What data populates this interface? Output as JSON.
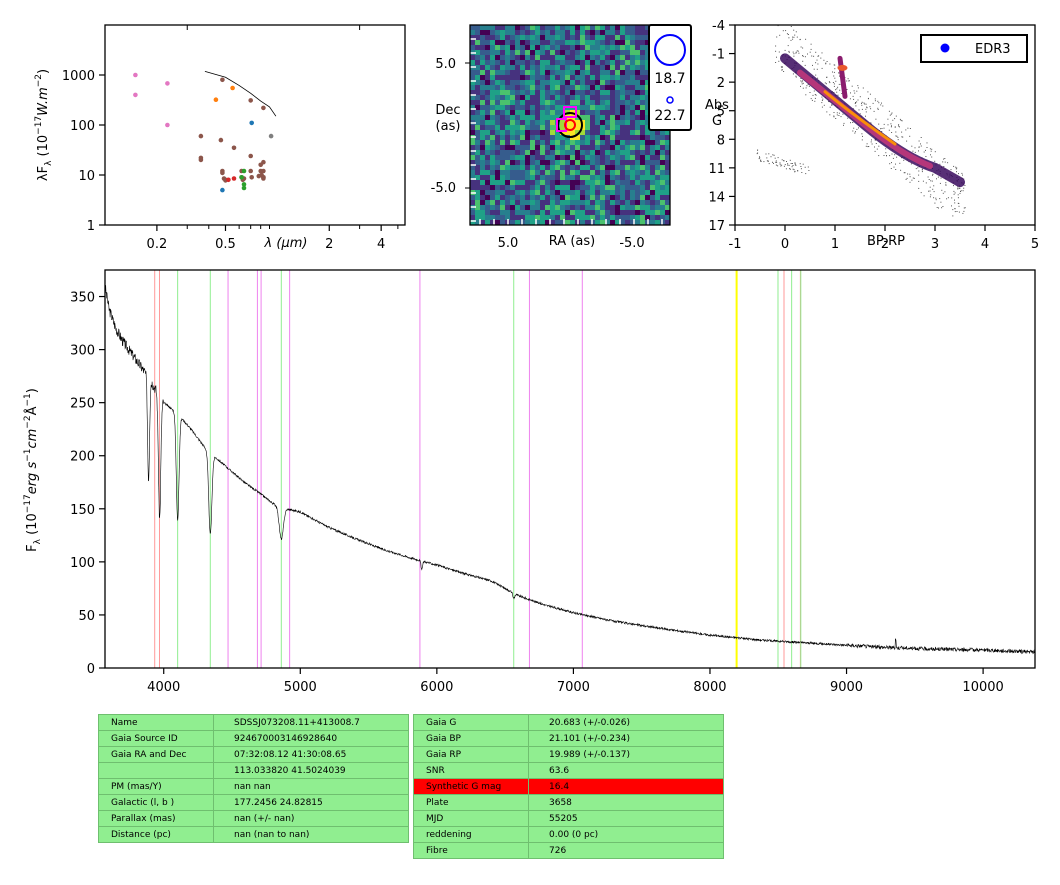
{
  "chart_data": [
    {
      "type": "scatter",
      "panel": "sed",
      "ylabel_main": "λF",
      "ylabel_sub": "λ",
      "ylabel_unit": " (10",
      "ylabel_exp": "−17",
      "ylabel_tail": "W.m",
      "ylabel_exp2": "−2",
      "ylabel_close": ")",
      "xlabel": "λ (μm)",
      "xscale": "log",
      "yscale": "log",
      "xlim": [
        0.1,
        5.5
      ],
      "ylim": [
        1,
        10000
      ],
      "x_ticks": [
        0.2,
        0.5,
        2,
        4
      ],
      "x_tick_labels": [
        "0.2",
        "0.5",
        "2",
        "4"
      ],
      "y_ticks": [
        1,
        10,
        100,
        1000
      ],
      "y_tick_labels": [
        "1",
        "10",
        "100",
        "1000"
      ],
      "series": [
        {
          "color": "#e377c2",
          "x": [
            0.15,
            0.15,
            0.23,
            0.23
          ],
          "y": [
            1000,
            400,
            680,
            100
          ]
        },
        {
          "color": "#8c564b",
          "x": [
            0.36,
            0.36,
            0.36,
            0.47,
            0.48,
            0.48,
            0.49,
            0.5,
            0.5,
            0.56,
            0.62,
            0.62,
            0.63,
            0.64,
            0.7,
            0.7,
            0.71,
            0.78,
            0.8,
            0.8,
            0.81,
            0.83,
            0.83,
            0.83,
            0.83,
            0.83,
            0.48,
            0.7,
            0.83
          ],
          "y": [
            60,
            22,
            20,
            50,
            12,
            11,
            8.5,
            8,
            7.8,
            35,
            12,
            9,
            8,
            8.5,
            24,
            12,
            9,
            9.5,
            16,
            12,
            10,
            9,
            8.5,
            18,
            12,
            9,
            800,
            310,
            220
          ]
        },
        {
          "color": "#ff7f0e",
          "x": [
            0.44,
            0.55
          ],
          "y": [
            320,
            550
          ]
        },
        {
          "color": "#1f77b4",
          "x": [
            0.48,
            0.71
          ],
          "y": [
            5,
            110
          ]
        },
        {
          "color": "#d62728",
          "x": [
            0.52,
            0.56
          ],
          "y": [
            8,
            8.5
          ]
        },
        {
          "color": "#2ca02c",
          "x": [
            0.64,
            0.64,
            0.64,
            0.62
          ],
          "y": [
            12,
            6.5,
            5.5,
            9
          ]
        },
        {
          "color": "#7f7f7f",
          "x": [
            0.92
          ],
          "y": [
            60
          ]
        }
      ],
      "sed_line": {
        "x": [
          0.38,
          0.5,
          0.6,
          0.7,
          0.8,
          0.9,
          0.98
        ],
        "y": [
          1180,
          900,
          620,
          430,
          300,
          230,
          150
        ]
      }
    },
    {
      "type": "heatmap",
      "panel": "cutout",
      "xlabel": "RA (as)",
      "ylabel": "Dec (as)",
      "ylabel_line1": "Dec",
      "ylabel_line2": "(as)",
      "x_tick_labels": [
        "5.0",
        "-5.0"
      ],
      "y_tick_labels": [
        "5.0",
        "-5.0"
      ],
      "legend_values": [
        "18.7",
        "22.7"
      ]
    },
    {
      "type": "scatter",
      "panel": "hr_diagram",
      "xlabel": "BP-RP",
      "ylabel": "Abs G",
      "ylabel_line1": "Abs",
      "ylabel_line2": "G",
      "xlim": [
        -1,
        5
      ],
      "ylim": [
        17,
        -4
      ],
      "x_tick_labels": [
        "-1",
        "0",
        "1",
        "2",
        "3",
        "4",
        "5"
      ],
      "y_tick_labels": [
        "-4",
        "-1",
        "2",
        "5",
        "8",
        "11",
        "14",
        "17"
      ],
      "legend_label": "EDR3"
    },
    {
      "type": "line",
      "panel": "spectrum",
      "ylabel_main": "F",
      "ylabel_sub": "λ",
      "ylabel_unit": " (10",
      "ylabel_exp": "−17",
      "ylabel_tail": "erg s",
      "ylabel_exp2": "−1",
      "ylabel_tail2": "cm",
      "ylabel_exp3": "−2",
      "ylabel_tail3": "Å",
      "ylabel_exp4": "−1",
      "ylabel_close": ")",
      "xlim": [
        3570,
        10380
      ],
      "ylim": [
        0,
        375
      ],
      "x_ticks": [
        4000,
        5000,
        6000,
        7000,
        8000,
        9000,
        10000
      ],
      "x_tick_labels": [
        "4000",
        "5000",
        "6000",
        "7000",
        "8000",
        "9000",
        "10000"
      ],
      "y_ticks": [
        0,
        50,
        100,
        150,
        200,
        250,
        300,
        350
      ],
      "y_tick_labels": [
        "0",
        "50",
        "100",
        "150",
        "200",
        "250",
        "300",
        "350"
      ],
      "continuum": {
        "x": [
          3570,
          3600,
          3650,
          3700,
          3800,
          3900,
          4000,
          4100,
          4200,
          4300,
          4400,
          4500,
          4600,
          4700,
          4800,
          4900,
          5000,
          5200,
          5400,
          5600,
          5800,
          6000,
          6200,
          6400,
          6600,
          6800,
          7000,
          7300,
          7600,
          8000,
          8400,
          8800,
          9200,
          9600,
          10000,
          10380
        ],
        "y": [
          360,
          338,
          320,
          308,
          290,
          272,
          250,
          240,
          225,
          208,
          196,
          185,
          174,
          165,
          155,
          150,
          147,
          133,
          122,
          112,
          104,
          97,
          89,
          82,
          68,
          59,
          52,
          44,
          38,
          31,
          26,
          23,
          20,
          18,
          17,
          15
        ]
      },
      "absorption_lines": [
        {
          "x": 3889,
          "depth": 0.35,
          "width": 10
        },
        {
          "x": 3970,
          "depth": 0.45,
          "width": 12
        },
        {
          "x": 4102,
          "depth": 0.42,
          "width": 14
        },
        {
          "x": 4341,
          "depth": 0.38,
          "width": 16
        },
        {
          "x": 4861,
          "depth": 0.2,
          "width": 22
        },
        {
          "x": 5890,
          "depth": 0.08,
          "width": 8
        },
        {
          "x": 6563,
          "depth": 0.07,
          "width": 10
        }
      ],
      "vertical_lines": [
        {
          "x": 3934,
          "color": "#ff9999"
        },
        {
          "x": 3969,
          "color": "#ff9999"
        },
        {
          "x": 4102,
          "color": "#90ee90"
        },
        {
          "x": 4341,
          "color": "#90ee90"
        },
        {
          "x": 4471,
          "color": "#ee82ee"
        },
        {
          "x": 4686,
          "color": "#ee82ee"
        },
        {
          "x": 4713,
          "color": "#ee82ee"
        },
        {
          "x": 4861,
          "color": "#90ee90"
        },
        {
          "x": 4922,
          "color": "#ee82ee"
        },
        {
          "x": 5876,
          "color": "#ee82ee"
        },
        {
          "x": 6563,
          "color": "#90ee90"
        },
        {
          "x": 6678,
          "color": "#ee82ee"
        },
        {
          "x": 7065,
          "color": "#ee82ee"
        },
        {
          "x": 8195,
          "color": "#ffff00"
        },
        {
          "x": 8498,
          "color": "#90ee90"
        },
        {
          "x": 8542,
          "color": "#ff9999"
        },
        {
          "x": 8598,
          "color": "#90ee90"
        },
        {
          "x": 8662,
          "color": "#ff9999"
        },
        {
          "x": 8665,
          "color": "#90ee90"
        }
      ]
    }
  ],
  "table_left": [
    [
      "Name",
      "SDSSJ073208.11+413008.7"
    ],
    [
      "Gaia Source ID",
      "924670003146928640"
    ],
    [
      "Gaia RA and Dec",
      "07:32:08.12    41:30:08.65"
    ],
    [
      "",
      "113.033820    41.5024039"
    ],
    [
      "PM (mas/Y)",
      "nan    nan"
    ],
    [
      "Galactic (l, b )",
      "177.2456    24.82815"
    ],
    [
      "Parallax (mas)",
      "nan (+/- nan)"
    ],
    [
      "Distance (pc)",
      "nan (nan to nan)"
    ]
  ],
  "table_right": [
    [
      "Gaia G",
      "20.683 (+/-0.026)"
    ],
    [
      "Gaia BP",
      "21.101 (+/-0.234)"
    ],
    [
      "Gaia RP",
      "19.989 (+/-0.137)"
    ],
    [
      "SNR",
      "63.6"
    ],
    [
      "Synthetic G mag",
      "16.4"
    ],
    [
      "Plate",
      "3658"
    ],
    [
      "MJD",
      "55205"
    ],
    [
      "reddening",
      "0.00 (0 pc)"
    ],
    [
      "Fibre",
      "726"
    ]
  ],
  "alert_row_label": "Synthetic G mag"
}
